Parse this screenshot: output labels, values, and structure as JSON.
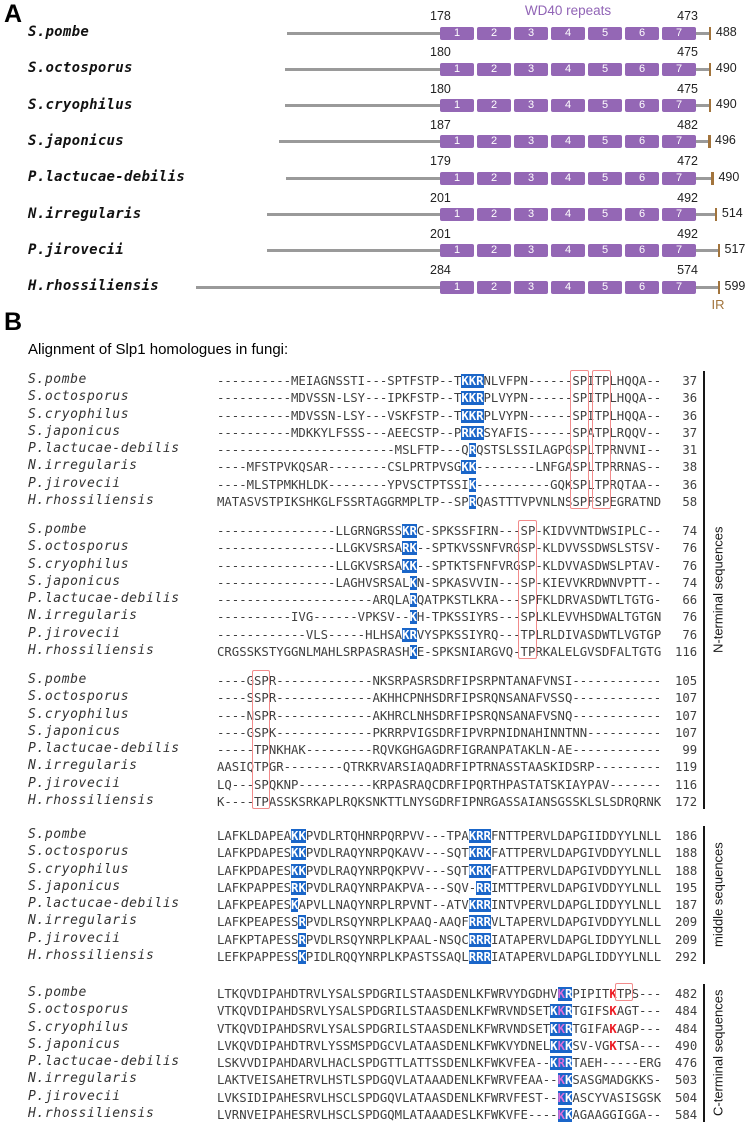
{
  "colors": {
    "wd40_purple": "#9467b5",
    "highlight_blue": "#1a66c9",
    "highlight_magenta": "#d96fd9",
    "red_letter": "#ed1c24",
    "red_outline": "#f28b8b",
    "ir_brown": "#a2743c",
    "backbone_gray": "#9a9a9a"
  },
  "panel_a": {
    "label": "A",
    "wd40_label": "WD40 repeats",
    "ir_label": "IR",
    "repeat_numbers": [
      "1",
      "2",
      "3",
      "4",
      "5",
      "6",
      "7"
    ],
    "rows": [
      {
        "species": "S.pombe",
        "start": 178,
        "end": 473,
        "total": 488
      },
      {
        "species": "S.octosporus",
        "start": 180,
        "end": 475,
        "total": 490
      },
      {
        "species": "S.cryophilus",
        "start": 180,
        "end": 475,
        "total": 490
      },
      {
        "species": "S.japonicus",
        "start": 187,
        "end": 482,
        "total": 496
      },
      {
        "species": "P.lactucae-debilis",
        "start": 179,
        "end": 472,
        "total": 490
      },
      {
        "species": "N.irregularis",
        "start": 201,
        "end": 492,
        "total": 514
      },
      {
        "species": "P.jirovecii",
        "start": 201,
        "end": 492,
        "total": 517
      },
      {
        "species": "H.rhossiliensis",
        "start": 284,
        "end": 574,
        "total": 599
      }
    ]
  },
  "panel_b": {
    "label": "B",
    "title": "Alignment of Slp1 homologues in fungi:",
    "bracket_labels": [
      "N-terminal sequences",
      "middle sequences",
      "C-terminal sequences"
    ],
    "blocks": [
      {
        "red_boxes": [
          {
            "col": 48,
            "len": 2,
            "row_start": 0,
            "row_end": 7
          },
          {
            "col": 51,
            "len": 2,
            "row_start": 0,
            "row_end": 7
          }
        ],
        "rows": [
          {
            "species": "S.pombe",
            "seq": "----------MEIAGNSSTI---SPTFSTP--TKKRNLVFPN------SPITPLHQQA--",
            "num": 37,
            "blue": [
              [
                33,
                3
              ]
            ]
          },
          {
            "species": "S.octosporus",
            "seq": "----------MDVSSN-LSY---IPKFSTP--TKKRPLVYPN------SPITPLHQQA--",
            "num": 36,
            "blue": [
              [
                33,
                3
              ]
            ]
          },
          {
            "species": "S.cryophilus",
            "seq": "----------MDVSSN-LSY---VSKFSTP--TKKRPLVYPN------SPITPLHQQA--",
            "num": 36,
            "blue": [
              [
                33,
                3
              ]
            ]
          },
          {
            "species": "S.japonicus",
            "seq": "----------MDKKYLFSSS---AEECSTP--PRKRSYAFIS------SPATPLRQQV--",
            "num": 37,
            "blue": [
              [
                33,
                3
              ]
            ]
          },
          {
            "species": "P.lactucae-debilis",
            "seq": "------------------------MSLFTP---QRQSTSLSSILAGPGSPLTPRNVNI--",
            "num": 31,
            "blue": [
              [
                34,
                1
              ]
            ]
          },
          {
            "species": "N.irregularis",
            "seq": "----MFSTPVKQSAR--------CSLPRTPVSGKK--------LNFGASPLTPRRNAS--",
            "num": 38,
            "blue": [
              [
                33,
                2
              ]
            ]
          },
          {
            "species": "P.jirovecii",
            "seq": "----MLSTPMKHLDK--------YPVSCTPTSSIK----------GQKSPLTPRQTAA--",
            "num": 36,
            "blue": [
              [
                34,
                1
              ]
            ]
          },
          {
            "species": "H.rhossiliensis",
            "seq": "MATASVSTPIKSHKGLFSSRTAGGRMPLTP--SPRQASTTTVPVNLNSSPFSPEGRATND",
            "num": 58,
            "blue": [
              [
                34,
                1
              ]
            ]
          }
        ]
      },
      {
        "red_boxes": [
          {
            "col": 41,
            "len": 2,
            "row_start": 0,
            "row_end": 7
          }
        ],
        "rows": [
          {
            "species": "S.pombe",
            "seq": "----------------LLGRNGRSSKRC-SPKSSFIRN---SP-KIDVVNTDWSIPLC--",
            "num": 74,
            "blue": [
              [
                25,
                2
              ]
            ]
          },
          {
            "species": "S.octosporus",
            "seq": "----------------LLGKVSRSARK--SPTKVSSNFVRGSP-KLDVVSSDWSLSTSV-",
            "num": 76,
            "blue": [
              [
                25,
                2
              ]
            ]
          },
          {
            "species": "S.cryophilus",
            "seq": "----------------LLGKVSRSAKK--SPTKTSFNFVRGSP-KLDVVASDWSLPTAV-",
            "num": 76,
            "blue": [
              [
                25,
                2
              ]
            ]
          },
          {
            "species": "S.japonicus",
            "seq": "----------------LAGHVSRSALKN-SPKASVVIN---SP-KIEVVKRDWNVPTT--",
            "num": 74,
            "blue": [
              [
                26,
                1
              ]
            ]
          },
          {
            "species": "P.lactucae-debilis",
            "seq": "---------------------ARQLARQATPKSTLKRA---SPFKLDRVASDWTLTGTG-",
            "num": 66,
            "blue": [
              [
                26,
                1
              ]
            ]
          },
          {
            "species": "N.irregularis",
            "seq": "----------IVG------VPKSV--KH-TPKSSIYRS---SPLKLEVVHSDWALTGTGN",
            "num": 76,
            "blue": [
              [
                26,
                1
              ]
            ]
          },
          {
            "species": "P.jirovecii",
            "seq": "------------VLS-----HLHSAKRVYSPKSSIYRQ---TPLRLDIVASDWTLVGTGP",
            "num": 76,
            "blue": [
              [
                25,
                2
              ]
            ]
          },
          {
            "species": "H.rhossiliensis",
            "seq": "CRGSSKSTYGGNLMAHLSRPASRASHKE-SPKSNIARGVQ-TPRKALELGVSDFALTGTG",
            "num": 116,
            "blue": [
              [
                26,
                1
              ]
            ]
          }
        ]
      },
      {
        "red_boxes": [
          {
            "col": 5,
            "len": 2,
            "row_start": 0,
            "row_end": 7
          }
        ],
        "rows": [
          {
            "species": "S.pombe",
            "seq": "----GSPR-------------NKSRPASRSDRFIPSRPNTANAFVNSI------------",
            "num": 105,
            "blue": []
          },
          {
            "species": "S.octosporus",
            "seq": "----SSPR-------------AKHHCPNHSDRFIPSRQNSANAFVSSQ------------",
            "num": 107,
            "blue": []
          },
          {
            "species": "S.cryophilus",
            "seq": "----NSPR-------------AKHRCLNHSDRFIPSRQNSANAFVSNQ------------",
            "num": 107,
            "blue": []
          },
          {
            "species": "S.japonicus",
            "seq": "----GSPK-------------PKRRPVIGSDRFIPVRPNIDNAHINNTNN----------",
            "num": 107,
            "blue": []
          },
          {
            "species": "P.lactucae-debilis",
            "seq": "-----TPNKHAK---------RQVKGHGAGDRFIGRANPATAKLN-AE------------",
            "num": 99,
            "blue": []
          },
          {
            "species": "N.irregularis",
            "seq": "AASIQTPGR--------QTRKRVARSIAQADRFIPTRNASSTAASKIDSRP---------",
            "num": 119,
            "blue": []
          },
          {
            "species": "P.jirovecii",
            "seq": "LQ---SPQKNP----------KRPASRAQCDRFIPQRTHPASTATSKIAYPAV-------",
            "num": 116,
            "blue": []
          },
          {
            "species": "H.rhossiliensis",
            "seq": "K----TPASSKSRKAPLRQKSNKTTLNYSGDRFIPNRGASSAIANSGSSKLSLSDRQRNK",
            "num": 172,
            "blue": []
          }
        ]
      },
      {
        "red_boxes": [],
        "rows": [
          {
            "species": "S.pombe",
            "seq": "LAFKLDAPEAKKPVDLRTQHNRPQRPVV---TPAKRRFNTTPERVLDAPGIIDDYYLNLL",
            "num": 186,
            "blue": [
              [
                10,
                2
              ],
              [
                34,
                3
              ]
            ]
          },
          {
            "species": "S.octosporus",
            "seq": "LAFKPDAPESKKPVDLRAQYNRPQKAVV---SQTKRKFATTPERVLDAPGIVDDYYLNLL",
            "num": 188,
            "blue": [
              [
                10,
                2
              ],
              [
                34,
                3
              ]
            ]
          },
          {
            "species": "S.cryophilus",
            "seq": "LAFKPDAPESKKPVDLRAQYNRPQKPVV---SQTKRKFATTPERVLDAPGIVDDYYLNLL",
            "num": 188,
            "blue": [
              [
                10,
                2
              ],
              [
                34,
                3
              ]
            ]
          },
          {
            "species": "S.japonicus",
            "seq": "LAFKPAPPESRKPVDLRAQYNRPAKPVA---SQV-RRIMTTPERVLDAPGIVDDYYLNLL",
            "num": 195,
            "blue": [
              [
                10,
                2
              ],
              [
                35,
                2
              ]
            ]
          },
          {
            "species": "P.lactucae-debilis",
            "seq": "LAFKPEAPESKAPVLLNAQYNRPLRPVNT--ATVKRRINTVPERVLDAPGLIDDYYLNLL",
            "num": 187,
            "blue": [
              [
                10,
                1
              ],
              [
                34,
                3
              ]
            ]
          },
          {
            "species": "N.irregularis",
            "seq": "LAFKPEAPESSRPVDLRSQYNRPLKPAAQ-AAQFRRRVLTAPERVLDAPGIVDDYYLNLL",
            "num": 209,
            "blue": [
              [
                11,
                1
              ],
              [
                34,
                3
              ]
            ]
          },
          {
            "species": "P.jirovecii",
            "seq": "LAFKPTAPESSRPVDLRSQYNRPLKPAAL-NSQCRRRIATAPERVLDAPGLIDDYYLNLL",
            "num": 209,
            "blue": [
              [
                11,
                1
              ],
              [
                34,
                3
              ]
            ]
          },
          {
            "species": "H.rhossiliensis",
            "seq": "LEFKPAPPESSKPIDLRQQYNRPLKPASTSSAQLRRRIATAPERVLDAPGLIDDYYLNLL",
            "num": 292,
            "blue": [
              [
                11,
                1
              ],
              [
                34,
                3
              ]
            ]
          }
        ]
      },
      {
        "red_boxes": [
          {
            "col": 54,
            "len": 2,
            "row_start": 0,
            "row_end": 0
          }
        ],
        "rows": [
          {
            "species": "S.pombe",
            "seq": "LTKQVDIPAHDTRVLYSALSPDGRILSTAASDENLKFWRVYDGDHVKRPIPITKTPS---",
            "num": 482,
            "blue": [
              [
                46,
                2
              ]
            ],
            "magenta": [
              46
            ],
            "red_letters": [
              53
            ]
          },
          {
            "species": "S.octosporus",
            "seq": "VTKQVDIPAHDSRVLYSALSPDGRILSTAASDENLKFWRVNDSETKKRTGIFSKAGT---",
            "num": 484,
            "blue": [
              [
                45,
                3
              ]
            ],
            "magenta": [
              46
            ],
            "red_letters": [
              53
            ]
          },
          {
            "species": "S.cryophilus",
            "seq": "VTKQVDIPAHDSRVLYSALSPDGRILSTAASDENLKFWRVNDSETKKRTGIFAKAGP---",
            "num": 484,
            "blue": [
              [
                45,
                3
              ]
            ],
            "magenta": [
              46
            ],
            "red_letters": [
              53
            ]
          },
          {
            "species": "S.japonicus",
            "seq": "LVKQVDIPAHDTRVLYSSMSPDGCVLATAASDENLKFWKVYDNELKKKSV-VGKTSA---",
            "num": 490,
            "blue": [
              [
                45,
                3
              ]
            ],
            "magenta": [
              46
            ],
            "red_letters": [
              53
            ]
          },
          {
            "species": "P.lactucae-debilis",
            "seq": "LSKVVDIPAHDARVLHACLSPDGTTLATTSSDENLKFWKVFEA--KRRTAEH-----ERG",
            "num": 476,
            "blue": [
              [
                45,
                3
              ]
            ],
            "magenta": [
              46
            ],
            "red_letters": []
          },
          {
            "species": "N.irregularis",
            "seq": "LAKTVEISAHETRVLHSTLSPDGQVLATAAADENLKFWRVFEAA--KKSASGMADGKKS-",
            "num": 503,
            "blue": [
              [
                46,
                2
              ]
            ],
            "magenta": [
              46
            ],
            "red_letters": []
          },
          {
            "species": "P.jirovecii",
            "seq": "LVKSIDIPAHESRVLHSCLSPDGQVLATAASDENLKFWRVFEST--KKASCYVASISGSK",
            "num": 504,
            "blue": [
              [
                46,
                2
              ]
            ],
            "magenta": [
              46
            ],
            "red_letters": []
          },
          {
            "species": "H.rhossiliensis",
            "seq": "LVRNVEIPAHESRVLHSCLSPDGQMLATAAADESLKFWKVFE----KKAGAAGGIGGA--",
            "num": 584,
            "blue": [
              [
                46,
                2
              ]
            ],
            "magenta": [
              46
            ],
            "red_letters": []
          }
        ]
      }
    ]
  }
}
